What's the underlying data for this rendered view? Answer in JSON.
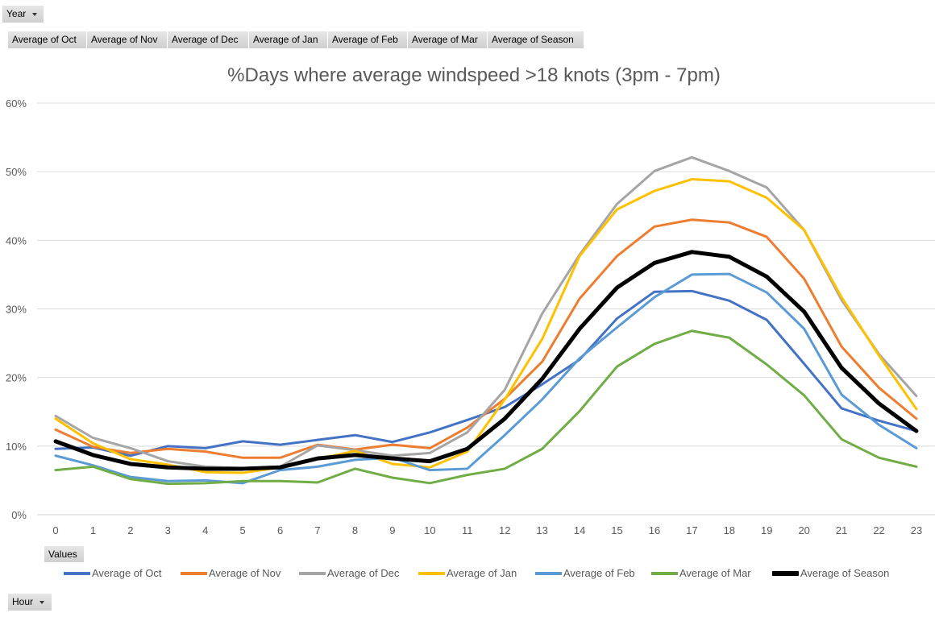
{
  "filters": {
    "year_label": "Year",
    "hour_label": "Hour",
    "values_label": "Values"
  },
  "value_fields": [
    "Average of Oct",
    "Average of Nov",
    "Average of Dec",
    "Average of Jan",
    "Average of Feb",
    "Average of Mar",
    "Average of Season"
  ],
  "chart_data": {
    "type": "line",
    "title": "%Days where average windspeed >18 knots (3pm - 7pm)",
    "xlabel": "",
    "ylabel": "",
    "x": [
      0,
      1,
      2,
      3,
      4,
      5,
      6,
      7,
      8,
      9,
      10,
      11,
      12,
      13,
      14,
      15,
      16,
      17,
      18,
      19,
      20,
      21,
      22,
      23
    ],
    "ylim": [
      0,
      60
    ],
    "yticks": [
      0,
      10,
      20,
      30,
      40,
      50,
      60
    ],
    "ytick_labels": [
      "0%",
      "10%",
      "20%",
      "30%",
      "40%",
      "50%",
      "60%"
    ],
    "grid": true,
    "legend_position": "bottom",
    "series": [
      {
        "name": "Average of Oct",
        "color": "#4472c4",
        "values": [
          9.6,
          9.8,
          8.6,
          10.0,
          9.7,
          10.7,
          10.2,
          10.9,
          11.6,
          10.6,
          12.0,
          13.8,
          15.7,
          19.0,
          22.6,
          28.6,
          32.5,
          32.6,
          31.2,
          28.4,
          22.0,
          15.5,
          13.7,
          12.2
        ]
      },
      {
        "name": "Average of Nov",
        "color": "#ed7d31",
        "values": [
          12.4,
          9.9,
          9.0,
          9.6,
          9.2,
          8.3,
          8.3,
          10.2,
          9.5,
          10.2,
          9.7,
          12.7,
          16.9,
          22.3,
          31.5,
          37.7,
          42.0,
          43.0,
          42.6,
          40.5,
          34.4,
          24.5,
          18.5,
          14.0
        ]
      },
      {
        "name": "Average of Dec",
        "color": "#a5a5a5",
        "values": [
          14.4,
          11.2,
          9.7,
          7.8,
          7.0,
          6.8,
          7.0,
          10.1,
          9.4,
          8.6,
          9.0,
          12.0,
          18.2,
          29.3,
          37.9,
          45.3,
          50.1,
          52.1,
          50.1,
          47.7,
          41.5,
          31.3,
          23.4,
          17.3
        ]
      },
      {
        "name": "Average of Jan",
        "color": "#ffc000",
        "values": [
          14.0,
          10.4,
          8.1,
          7.3,
          6.2,
          6.1,
          6.9,
          8.1,
          9.3,
          7.4,
          6.9,
          9.2,
          16.8,
          25.6,
          37.7,
          44.5,
          47.2,
          48.9,
          48.6,
          46.2,
          41.5,
          31.7,
          23.2,
          15.4
        ]
      },
      {
        "name": "Average of Feb",
        "color": "#5b9bd5",
        "values": [
          8.6,
          7.2,
          5.5,
          4.9,
          5.0,
          4.6,
          6.5,
          7.0,
          8.0,
          8.3,
          6.5,
          6.7,
          11.6,
          16.8,
          22.8,
          27.3,
          31.7,
          35.0,
          35.1,
          32.4,
          27.1,
          17.5,
          13.1,
          9.7
        ]
      },
      {
        "name": "Average of Mar",
        "color": "#70ad47",
        "values": [
          6.5,
          7.0,
          5.2,
          4.5,
          4.6,
          4.9,
          4.9,
          4.7,
          6.7,
          5.4,
          4.6,
          5.8,
          6.7,
          9.6,
          15.1,
          21.6,
          24.9,
          26.8,
          25.8,
          21.9,
          17.4,
          11.0,
          8.3,
          7.0
        ]
      },
      {
        "name": "Average of Season",
        "color": "#000000",
        "values": [
          10.7,
          8.7,
          7.4,
          6.9,
          6.7,
          6.7,
          6.9,
          8.2,
          8.7,
          8.2,
          7.8,
          9.6,
          14.0,
          19.8,
          27.1,
          33.1,
          36.7,
          38.3,
          37.6,
          34.7,
          29.6,
          21.4,
          16.2,
          12.2
        ]
      }
    ]
  }
}
